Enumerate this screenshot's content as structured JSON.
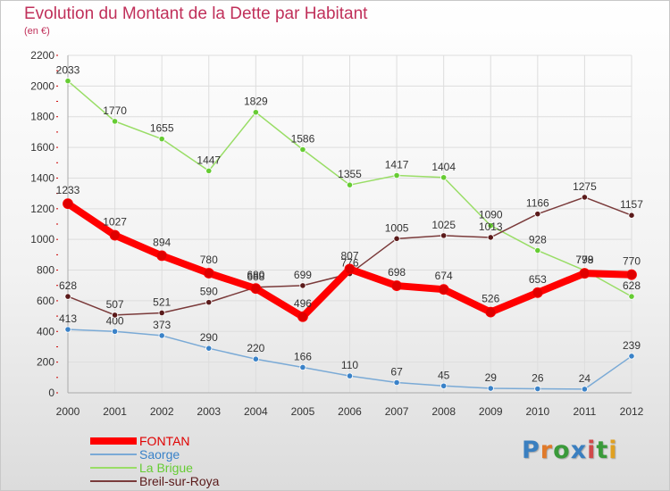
{
  "title": "Evolution du Montant de la Dette par Habitant",
  "subtitle": "(en €)",
  "logo": {
    "text": "Proxiti",
    "letter_colors": [
      "#3a7fc0",
      "#e07a2a",
      "#3a9a3a",
      "#3a7fc0",
      "#d04a4a",
      "#3a9a3a",
      "#e0a020"
    ]
  },
  "colors": {
    "title": "#c0305a",
    "axis_text": "#333333",
    "grid": "#dddddd",
    "axis_tick": "#cc0000",
    "value_label": "#333333"
  },
  "chart_data": {
    "type": "line",
    "title": "Evolution du Montant de la Dette par Habitant",
    "subtitle": "(en €)",
    "x": [
      "2000",
      "2001",
      "2002",
      "2003",
      "2004",
      "2005",
      "2006",
      "2007",
      "2008",
      "2009",
      "2010",
      "2011",
      "2012"
    ],
    "ylim": [
      0,
      2200
    ],
    "yticks": [
      0,
      200,
      400,
      600,
      800,
      1000,
      1200,
      1400,
      1600,
      1800,
      2000,
      2200
    ],
    "grid": true,
    "legend_position": "bottom-left",
    "series": [
      {
        "name": "FONTAN",
        "color": "#ff0000",
        "marker": "#e00000",
        "emphasis": true,
        "values": [
          1233,
          1027,
          894,
          780,
          680,
          496,
          807,
          698,
          674,
          526,
          653,
          779,
          770
        ]
      },
      {
        "name": "Saorge",
        "color": "#7aaad6",
        "marker": "#3a82c8",
        "emphasis": false,
        "values": [
          413,
          400,
          373,
          290,
          220,
          166,
          110,
          67,
          45,
          29,
          26,
          24,
          239
        ]
      },
      {
        "name": "La Brigue",
        "color": "#99dd66",
        "marker": "#66cc33",
        "emphasis": false,
        "values": [
          2033,
          1770,
          1655,
          1447,
          1829,
          1586,
          1355,
          1417,
          1404,
          1090,
          928,
          798,
          628
        ]
      },
      {
        "name": "Breil-sur-Roya",
        "color": "#7a3a3a",
        "marker": "#5a1a1a",
        "emphasis": false,
        "values": [
          628,
          507,
          521,
          590,
          688,
          699,
          776,
          1005,
          1025,
          1013,
          1166,
          1275,
          1157
        ]
      }
    ]
  }
}
